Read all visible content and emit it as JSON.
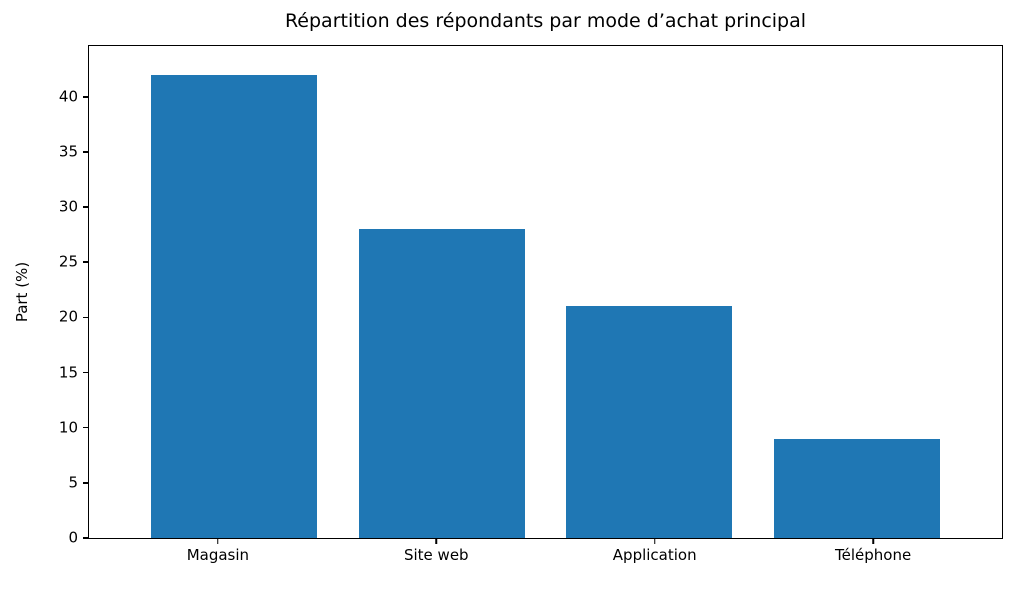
{
  "chart_data": {
    "type": "bar",
    "title": "Répartition des répondants par mode d’achat principal",
    "categories": [
      "Magasin",
      "Site web",
      "Application",
      "Téléphone"
    ],
    "values": [
      42,
      28,
      21,
      9
    ],
    "xlabel": "",
    "ylabel": "Part (%)",
    "ylim": [
      0,
      44.6
    ],
    "yticks": [
      0,
      5,
      10,
      15,
      20,
      25,
      30,
      35,
      40
    ],
    "bar_color": "#1f77b4",
    "axis_color": "#000000",
    "background_color": "#ffffff",
    "grid": false,
    "legend": "none",
    "bar_relative_width": 0.8
  }
}
